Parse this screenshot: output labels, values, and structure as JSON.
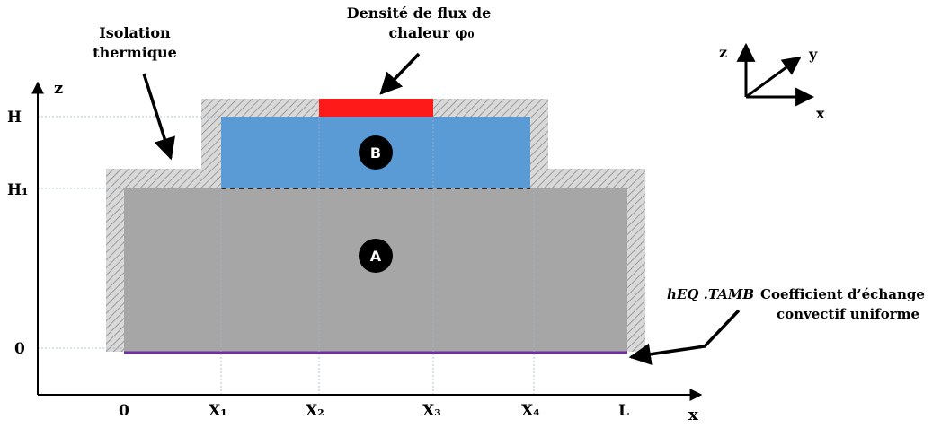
{
  "labels": {
    "heat_flux_line1": "Densité de flux de",
    "heat_flux_line2": "chaleur φ₀",
    "insulation_line1": "Isolation",
    "insulation_line2": "thermique",
    "convective_symbol": "hEQ .TAMB",
    "convective_line1": "Coefficient d’échange",
    "convective_line2": "convectif uniforme",
    "region_a": "A",
    "region_b": "B"
  },
  "axes": {
    "z_label": "z",
    "x_label": "x",
    "z_ticks": [
      "H",
      "H₁",
      "0"
    ],
    "x_ticks": [
      "0",
      "X₁",
      "X₂",
      "X₃",
      "X₄",
      "L"
    ]
  },
  "triad": {
    "z": "z",
    "y": "y",
    "x": "x"
  },
  "colors": {
    "region_a": "#a6a6a6",
    "region_b": "#5b9bd5",
    "heat_source": "#ff1a1a",
    "bottom_boundary": "#7030a0",
    "insulation": "#cfcfcf"
  }
}
